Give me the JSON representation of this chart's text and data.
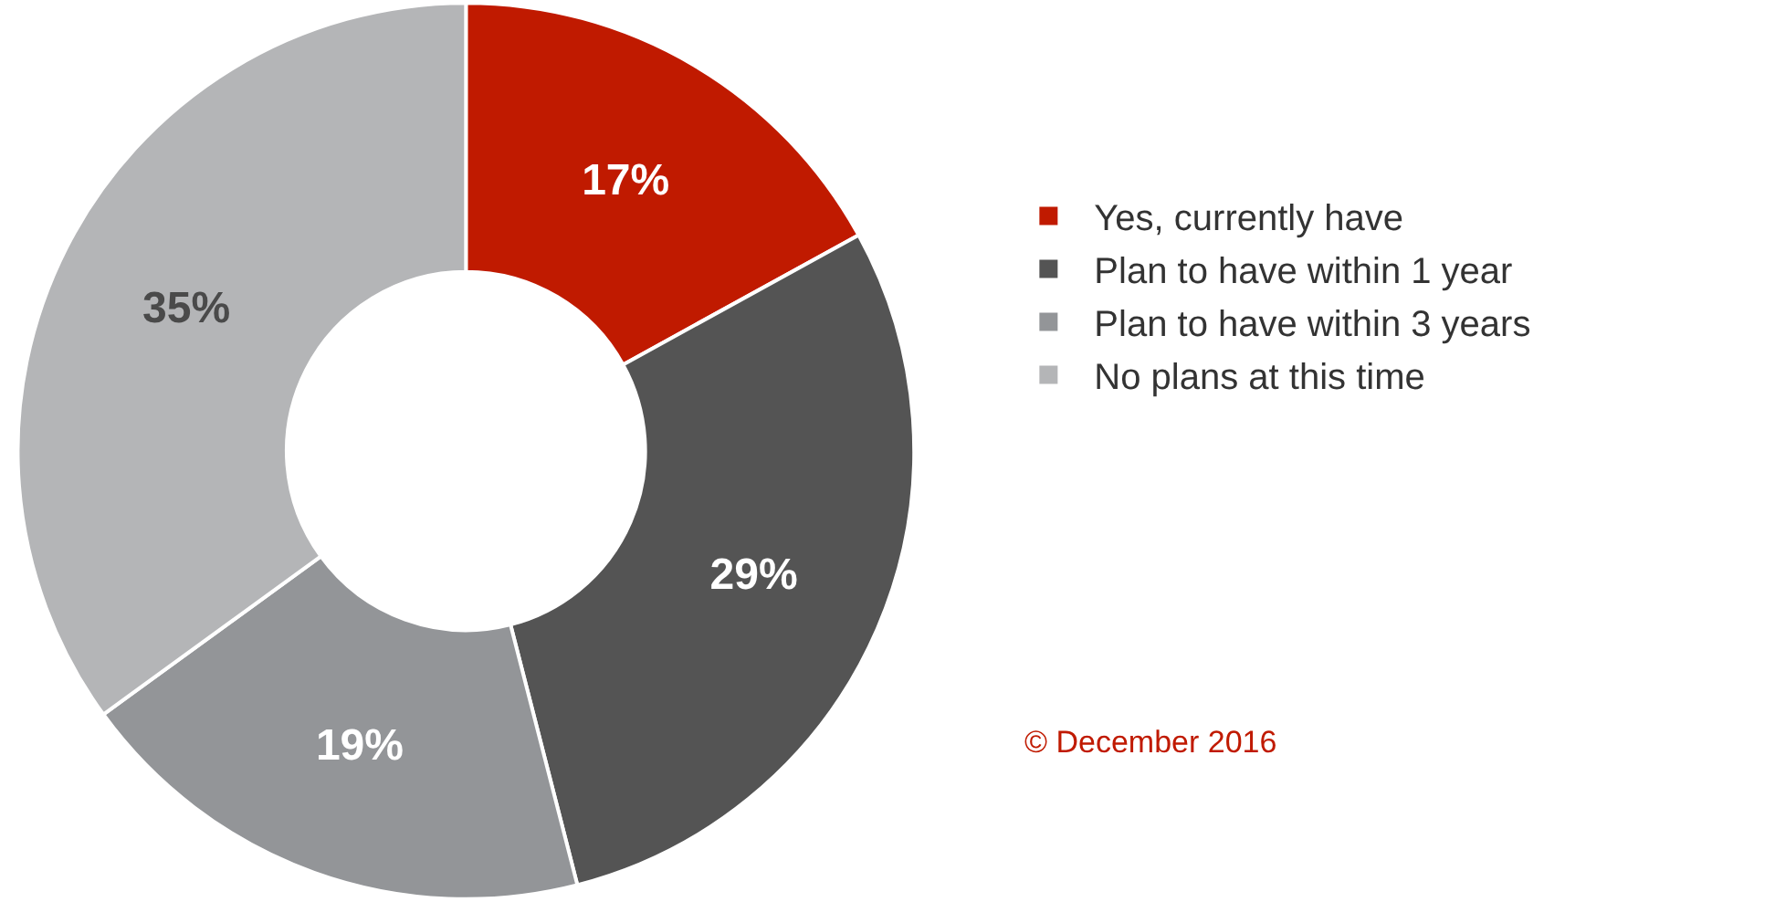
{
  "chart_data": {
    "type": "donut",
    "categories": [
      "Yes, currently have",
      "Plan to have within 1 year",
      "Plan to have within 3 years",
      "No plans at this time"
    ],
    "values": [
      17,
      29,
      19,
      35
    ],
    "colors": [
      "#c01a00",
      "#545454",
      "#939598",
      "#b4b5b7"
    ],
    "value_labels": [
      "17%",
      "29%",
      "19%",
      "35%"
    ],
    "legend": "right",
    "annotations": [
      "© December 2016"
    ]
  }
}
